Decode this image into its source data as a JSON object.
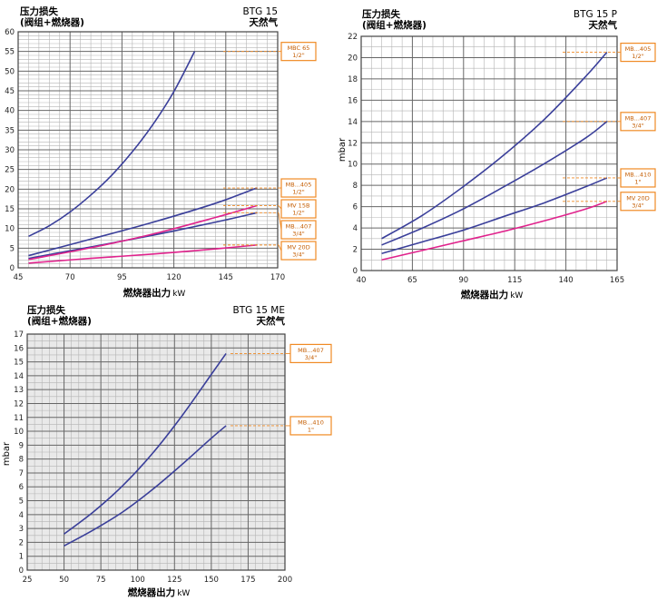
{
  "colors": {
    "blue": "#3a3f9a",
    "magenta": "#e0228c",
    "orange": "#f08a24",
    "grid_major": "#666666",
    "grid_minor": "#b4b4b4",
    "bg": "#ffffff",
    "plot_bg_me": "#e9e9e9"
  },
  "chart_data": [
    {
      "id": "btg15",
      "type": "line",
      "title_left_1": "压力损失",
      "title_left_2": "(阀组+燃烧器)",
      "title_right_1": "BTG 15",
      "title_right_2": "天然气",
      "xlabel_text": "燃烧器出力",
      "xlabel_unit": "kW",
      "ylabel": "",
      "xlim": [
        45,
        170
      ],
      "ylim": [
        0,
        60
      ],
      "x_ticks": [
        45,
        70,
        95,
        120,
        145,
        170
      ],
      "y_ticks": [
        0,
        5,
        10,
        15,
        20,
        25,
        30,
        35,
        40,
        45,
        50,
        55,
        60
      ],
      "grid": true,
      "series": [
        {
          "color": "blue",
          "x": [
            50,
            60,
            70,
            80,
            90,
            100,
            110,
            120,
            130
          ],
          "y": [
            8,
            10.7,
            14.2,
            18.5,
            23.5,
            29.5,
            36.5,
            44.8,
            55
          ]
        },
        {
          "color": "blue",
          "x": [
            50,
            80,
            110,
            140,
            160
          ],
          "y": [
            3.1,
            7.3,
            11.6,
            16.4,
            20.3
          ]
        },
        {
          "color": "blue",
          "x": [
            50,
            80,
            110,
            140,
            160
          ],
          "y": [
            2.4,
            5.3,
            8.3,
            11.6,
            14
          ]
        },
        {
          "color": "magenta",
          "x": [
            50,
            80,
            110,
            140,
            160
          ],
          "y": [
            2.1,
            5.1,
            8.6,
            12.8,
            15.8
          ]
        },
        {
          "color": "magenta",
          "x": [
            50,
            80,
            110,
            140,
            160
          ],
          "y": [
            1.2,
            2.4,
            3.5,
            4.8,
            5.8
          ]
        }
      ],
      "annotations": [
        {
          "line1": "MBC 65",
          "line2": "1/2\"",
          "ref_y": 55
        },
        {
          "line1": "MB...405",
          "line2": "1/2\"",
          "ref_y": 20.3
        },
        {
          "line1": "MV 15B",
          "line2": "1/2\"",
          "ref_y": 15.8
        },
        {
          "line1": "MB...407",
          "line2": "3/4\"",
          "ref_y": 14
        },
        {
          "line1": "MV 20D",
          "line2": "3/4\"",
          "ref_y": 5.8
        }
      ]
    },
    {
      "id": "btg15p",
      "type": "line",
      "title_left_1": "压力损失",
      "title_left_2": "(阀组+燃烧器)",
      "title_right_1": "BTG 15 P",
      "title_right_2": "天然气",
      "xlabel_text": "燃烧器出力",
      "xlabel_unit": "kW",
      "ylabel": "mbar",
      "xlim": [
        40,
        165
      ],
      "ylim": [
        0,
        22
      ],
      "x_ticks": [
        40,
        65,
        90,
        115,
        140,
        165
      ],
      "y_ticks": [
        0,
        2,
        4,
        6,
        8,
        10,
        12,
        14,
        16,
        18,
        20,
        22
      ],
      "grid": true,
      "series": [
        {
          "color": "blue",
          "x": [
            50,
            70,
            90,
            110,
            130,
            150,
            160
          ],
          "y": [
            3,
            5.2,
            7.9,
            10.9,
            14.3,
            18.3,
            20.5
          ]
        },
        {
          "color": "blue",
          "x": [
            50,
            70,
            90,
            110,
            130,
            150,
            160
          ],
          "y": [
            2.4,
            4,
            5.8,
            7.9,
            10.1,
            12.5,
            14
          ]
        },
        {
          "color": "blue",
          "x": [
            50,
            70,
            90,
            110,
            130,
            150,
            160
          ],
          "y": [
            1.6,
            2.7,
            3.8,
            5.1,
            6.4,
            7.9,
            8.7
          ]
        },
        {
          "color": "magenta",
          "x": [
            50,
            70,
            90,
            110,
            130,
            150,
            160
          ],
          "y": [
            1,
            1.9,
            2.8,
            3.7,
            4.7,
            5.8,
            6.5
          ]
        }
      ],
      "annotations": [
        {
          "line1": "MB...405",
          "line2": "1/2\"",
          "ref_y": 20.5
        },
        {
          "line1": "MB...407",
          "line2": "3/4\"",
          "ref_y": 14
        },
        {
          "line1": "MB...410",
          "line2": "1\"",
          "ref_y": 8.7
        },
        {
          "line1": "MV 20D",
          "line2": "3/4\"",
          "ref_y": 6.5
        }
      ]
    },
    {
      "id": "btg15me",
      "type": "line",
      "title_left_1": "压力损失",
      "title_left_2": "(阀组+燃烧器)",
      "title_right_1": "BTG 15 ME",
      "title_right_2": "天然气",
      "xlabel_text": "燃烧器出力",
      "xlabel_unit": "kW",
      "ylabel": "mbar",
      "xlim": [
        25,
        200
      ],
      "ylim": [
        0,
        17
      ],
      "x_ticks": [
        25,
        50,
        75,
        100,
        125,
        150,
        175,
        200
      ],
      "y_ticks": [
        0,
        1,
        2,
        3,
        4,
        5,
        6,
        7,
        8,
        9,
        10,
        11,
        12,
        13,
        14,
        15,
        16,
        17
      ],
      "grid": true,
      "series": [
        {
          "color": "blue",
          "x": [
            50,
            70,
            90,
            110,
            130,
            150,
            160
          ],
          "y": [
            2.6,
            4.2,
            6.1,
            8.4,
            11.1,
            14.1,
            15.6
          ]
        },
        {
          "color": "blue",
          "x": [
            50,
            70,
            90,
            110,
            130,
            150,
            160
          ],
          "y": [
            1.75,
            2.9,
            4.2,
            5.8,
            7.6,
            9.5,
            10.4
          ]
        }
      ],
      "annotations": [
        {
          "line1": "MB...407",
          "line2": "3/4\"",
          "ref_y": 15.6
        },
        {
          "line1": "MB...410",
          "line2": "1\"",
          "ref_y": 10.4
        }
      ]
    }
  ]
}
